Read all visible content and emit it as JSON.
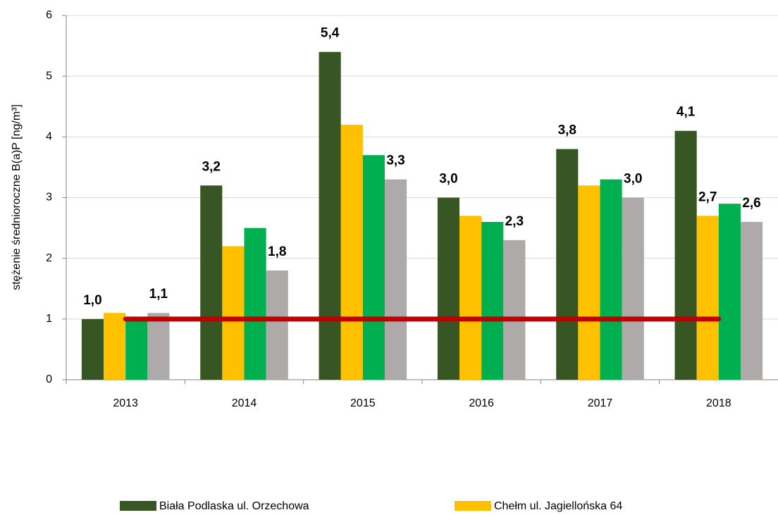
{
  "chart_data": {
    "type": "bar",
    "y_label": "stężenie średnioroczne B(a)P [ng/m³]",
    "categories": [
      "2013",
      "2014",
      "2015",
      "2016",
      "2017",
      "2018"
    ],
    "series": [
      {
        "name": "Biała Podlaska ul. Orzechowa",
        "color": "#375623",
        "values": [
          1.0,
          3.2,
          5.4,
          3.0,
          3.8,
          4.1
        ],
        "value_labels": [
          "1,0",
          "3,2",
          "5,4",
          "3,0",
          "3,8",
          "4,1"
        ]
      },
      {
        "name": "Chełm ul. Jagiellońska 64",
        "color": "#ffc000",
        "values": [
          1.1,
          2.2,
          4.2,
          2.7,
          3.2,
          2.7
        ],
        "value_labels": [
          null,
          null,
          null,
          null,
          null,
          "2,7"
        ]
      },
      {
        "color": "#00b050",
        "values": [
          1.0,
          2.5,
          3.7,
          2.6,
          3.3,
          2.9
        ]
      },
      {
        "color": "#aeaaaa",
        "values": [
          1.1,
          1.8,
          3.3,
          2.3,
          3.0,
          2.6
        ],
        "value_labels": [
          "1,1",
          "1,8",
          "3,3",
          "2,3",
          "3,0",
          "2,6"
        ]
      }
    ],
    "reference_line": {
      "value": 1,
      "color": "#c00000"
    },
    "ylim": [
      0,
      6
    ],
    "yticks": [
      0,
      1,
      2,
      3,
      4,
      5,
      6
    ],
    "grid": true
  }
}
